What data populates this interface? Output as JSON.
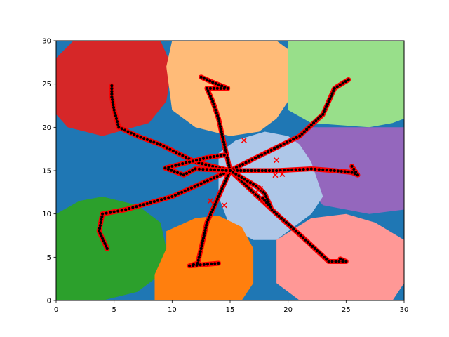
{
  "chart_data": {
    "type": "scatter",
    "title": "",
    "xlabel": "",
    "ylabel": "",
    "xlim": [
      0,
      30
    ],
    "ylim": [
      0,
      30
    ],
    "xticks": [
      "0",
      "5",
      "10",
      "15",
      "20",
      "25",
      "30"
    ],
    "yticks": [
      "0",
      "5",
      "10",
      "15",
      "20",
      "25",
      "30"
    ],
    "xtick_values": [
      0,
      5,
      10,
      15,
      20,
      25,
      30
    ],
    "ytick_values": [
      0,
      5,
      10,
      15,
      20,
      25,
      30
    ],
    "grid": false,
    "legend": "none",
    "background_color": "#1f77b4",
    "regions": [
      {
        "color": "#d62728",
        "points": [
          [
            0,
            21.5
          ],
          [
            0,
            28
          ],
          [
            1.5,
            30
          ],
          [
            9,
            30
          ],
          [
            10,
            27
          ],
          [
            9.5,
            23
          ],
          [
            8,
            20.5
          ],
          [
            4,
            19
          ],
          [
            1,
            20
          ]
        ]
      },
      {
        "color": "#ffbb78",
        "points": [
          [
            9.5,
            27
          ],
          [
            10,
            30
          ],
          [
            19,
            30
          ],
          [
            20,
            29
          ],
          [
            20,
            23
          ],
          [
            19,
            21
          ],
          [
            17.5,
            19.5
          ],
          [
            15,
            19
          ],
          [
            12,
            20
          ],
          [
            10,
            22
          ]
        ]
      },
      {
        "color": "#98df8a",
        "points": [
          [
            20,
            30
          ],
          [
            30,
            30
          ],
          [
            30,
            21
          ],
          [
            29,
            20.5
          ],
          [
            27,
            20
          ],
          [
            22,
            20.5
          ],
          [
            20,
            22
          ],
          [
            20,
            28
          ]
        ]
      },
      {
        "color": "#9467bd",
        "points": [
          [
            21,
            19
          ],
          [
            20,
            18
          ],
          [
            21,
            14
          ],
          [
            23,
            11
          ],
          [
            27,
            10
          ],
          [
            30,
            10.5
          ],
          [
            30,
            20
          ],
          [
            27,
            20
          ],
          [
            22,
            20
          ]
        ]
      },
      {
        "color": "#aec7e8",
        "points": [
          [
            14,
            17
          ],
          [
            15.5,
            18.5
          ],
          [
            18,
            19.5
          ],
          [
            20,
            19
          ],
          [
            21,
            18
          ],
          [
            22,
            16
          ],
          [
            23,
            12
          ],
          [
            22,
            10
          ],
          [
            19,
            7
          ],
          [
            17,
            7
          ],
          [
            15,
            8.5
          ],
          [
            14,
            12
          ]
        ]
      },
      {
        "color": "#2ca02c",
        "points": [
          [
            0,
            10
          ],
          [
            2,
            11.5
          ],
          [
            4,
            12
          ],
          [
            7,
            11
          ],
          [
            9,
            9
          ],
          [
            9.5,
            6
          ],
          [
            9,
            3
          ],
          [
            7,
            1
          ],
          [
            4,
            0
          ],
          [
            0,
            0
          ]
        ]
      },
      {
        "color": "#ff7f0e",
        "points": [
          [
            9.5,
            8
          ],
          [
            12,
            9.5
          ],
          [
            14,
            9.8
          ],
          [
            16,
            8.5
          ],
          [
            17,
            6
          ],
          [
            17,
            2
          ],
          [
            16,
            0
          ],
          [
            8.5,
            0
          ],
          [
            8.5,
            3
          ],
          [
            9.5,
            6
          ]
        ]
      },
      {
        "color": "#ff9896",
        "points": [
          [
            19,
            7
          ],
          [
            22,
            9.5
          ],
          [
            25,
            10
          ],
          [
            27.5,
            9
          ],
          [
            30,
            7
          ],
          [
            30,
            2
          ],
          [
            29,
            0
          ],
          [
            21,
            0
          ],
          [
            19,
            2
          ],
          [
            19,
            5
          ]
        ]
      }
    ],
    "series": [
      {
        "values": [
          [
            15,
            15
          ],
          [
            12,
            16
          ],
          [
            9,
            18
          ],
          [
            7,
            19
          ],
          [
            5.4,
            20
          ],
          [
            5,
            22
          ],
          [
            4.8,
            23.5
          ],
          [
            4.8,
            24.8
          ]
        ]
      },
      {
        "values": [
          [
            15,
            15
          ],
          [
            14.5,
            18
          ],
          [
            14,
            21
          ],
          [
            13.5,
            23
          ],
          [
            13,
            24.5
          ],
          [
            14.8,
            24.5
          ],
          [
            13.5,
            25.2
          ],
          [
            12.5,
            25.8
          ]
        ]
      },
      {
        "values": [
          [
            15,
            15
          ],
          [
            18,
            17
          ],
          [
            21,
            19
          ],
          [
            23,
            21.5
          ],
          [
            24,
            24.5
          ],
          [
            25.2,
            25.5
          ]
        ]
      },
      {
        "values": [
          [
            15,
            15
          ],
          [
            19,
            15
          ],
          [
            22,
            15.2
          ],
          [
            24,
            15
          ],
          [
            25.5,
            14.8
          ],
          [
            26,
            14.5
          ],
          [
            25.5,
            15.5
          ]
        ]
      },
      {
        "values": [
          [
            15,
            15
          ],
          [
            17,
            12.5
          ],
          [
            19,
            10
          ],
          [
            21.5,
            7
          ],
          [
            23.5,
            4.5
          ],
          [
            25,
            4.5
          ],
          [
            24.5,
            4.8
          ]
        ]
      },
      {
        "values": [
          [
            15,
            15
          ],
          [
            14,
            12
          ],
          [
            13,
            9
          ],
          [
            12.5,
            6
          ],
          [
            12.2,
            4.3
          ],
          [
            11.5,
            4
          ],
          [
            14,
            4.3
          ]
        ]
      },
      {
        "values": [
          [
            15,
            15
          ],
          [
            10,
            12
          ],
          [
            6,
            10.5
          ],
          [
            4,
            10
          ],
          [
            3.7,
            8
          ],
          [
            4.4,
            6
          ]
        ]
      },
      {
        "values": [
          [
            15,
            15
          ],
          [
            12,
            15.2
          ],
          [
            11,
            14.5
          ],
          [
            9.4,
            15.3
          ],
          [
            13,
            16.5
          ],
          [
            14.5,
            16.8
          ]
        ]
      },
      {
        "values": [
          [
            15,
            15
          ],
          [
            17.5,
            13
          ],
          [
            18,
            12.3
          ],
          [
            18.5,
            10.8
          ],
          [
            17.8,
            11.8
          ]
        ]
      }
    ],
    "stray_markers": [
      [
        19,
        16.2
      ],
      [
        18.9,
        14.5
      ],
      [
        19.5,
        14.6
      ],
      [
        13.3,
        11.5
      ],
      [
        16.2,
        18.5
      ],
      [
        17.2,
        12.5
      ],
      [
        17.6,
        12.9
      ],
      [
        14.5,
        11
      ]
    ],
    "trajectory_color": "#000000",
    "marker_color": "#ff0000"
  }
}
